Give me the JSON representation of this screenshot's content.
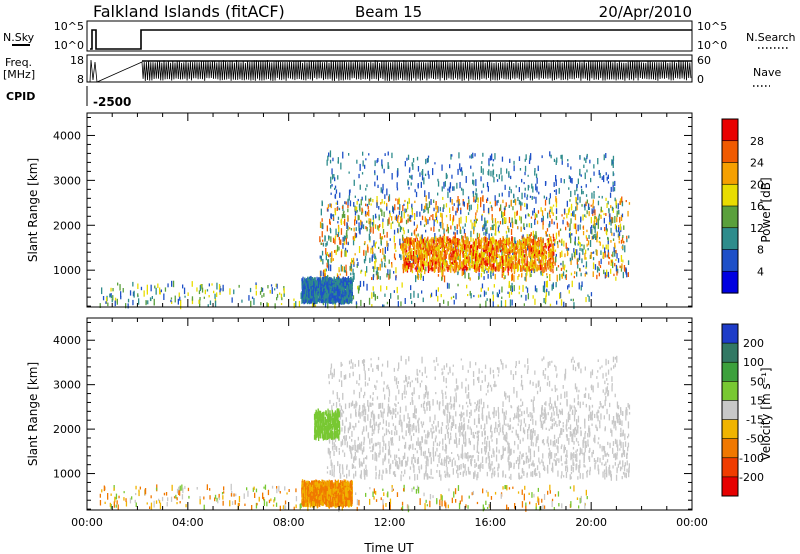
{
  "header": {
    "station": "Falkland Islands (fitACF)",
    "beam": "Beam 15",
    "date": "20/Apr/2010"
  },
  "top_panels": {
    "nsky_label": "N.Sky",
    "nsky_ticks": [
      "10^5",
      "10^0"
    ],
    "nsearch_label": "N.Search",
    "nsearch_ticks": [
      "10^5",
      "10^0"
    ],
    "freq_label": "Freq.",
    "freq_unit": "[MHz]",
    "freq_ticks": [
      "18",
      "8"
    ],
    "nave_label": "Nave",
    "nave_ticks": [
      "60",
      "0"
    ],
    "cpid_label": "CPID",
    "cpid_value": "-2500"
  },
  "chart_data": [
    {
      "type": "heatmap",
      "name": "power",
      "ylabel": "Slant Range [km]",
      "ylim": [
        180,
        4500
      ],
      "yticks": [
        1000,
        2000,
        3000,
        4000
      ],
      "ytick_labels": [
        "1000",
        "2000",
        "3000",
        "4000"
      ],
      "xlim_hours": [
        0,
        24
      ],
      "colorbar": {
        "label": "Power [dB]",
        "levels": [
          {
            "label": "28",
            "color": "#e80000"
          },
          {
            "label": "24",
            "color": "#f05a00"
          },
          {
            "label": "20",
            "color": "#f5a000"
          },
          {
            "label": "16",
            "color": "#e8dc00"
          },
          {
            "label": "12",
            "color": "#5aa03c"
          },
          {
            "label": "8",
            "color": "#2e8c8c"
          },
          {
            "label": "4",
            "color": "#1e50c8"
          }
        ],
        "bottom_color": "#0000e0"
      },
      "regions": [
        {
          "t0": 9.2,
          "t1": 21.5,
          "r0": 800,
          "r1": 2600,
          "value_range": [
            4,
            28
          ],
          "density": "dense"
        },
        {
          "t0": 12.5,
          "t1": 18.5,
          "r0": 1000,
          "r1": 1700,
          "value_range": [
            16,
            30
          ],
          "density": "dense"
        },
        {
          "t0": 9.5,
          "t1": 21.0,
          "r0": 2600,
          "r1": 3600,
          "value_range": [
            4,
            12
          ],
          "density": "sparse"
        },
        {
          "t0": 0.5,
          "t1": 20.0,
          "r0": 200,
          "r1": 700,
          "value_range": [
            4,
            20
          ],
          "density": "sparse"
        },
        {
          "t0": 8.5,
          "t1": 10.5,
          "r0": 300,
          "r1": 800,
          "value_range": [
            4,
            12
          ],
          "density": "dense"
        }
      ]
    },
    {
      "type": "heatmap",
      "name": "velocity",
      "ylabel": "Slant Range [km]",
      "ylim": [
        180,
        4500
      ],
      "yticks": [
        1000,
        2000,
        3000,
        4000
      ],
      "ytick_labels": [
        "1000",
        "2000",
        "3000",
        "4000"
      ],
      "xlabel": "Time UT",
      "xticks_hours": [
        0,
        4,
        8,
        12,
        16,
        20,
        24
      ],
      "xtick_labels": [
        "00:00",
        "04:00",
        "08:00",
        "12:00",
        "16:00",
        "20:00",
        "00:00"
      ],
      "colorbar": {
        "label": "Velocity [m s⁻¹]",
        "levels": [
          {
            "label": "200",
            "color": "#1e3cc8"
          },
          {
            "label": "100",
            "color": "#327864"
          },
          {
            "label": "50",
            "color": "#3ca03c"
          },
          {
            "label": "15",
            "color": "#78c832"
          },
          {
            "label": "-15",
            "color": "#c8c8c8"
          },
          {
            "label": "-50",
            "color": "#f0b400"
          },
          {
            "label": "-100",
            "color": "#f07800"
          },
          {
            "label": "-200",
            "color": "#f03c00"
          }
        ],
        "bottom_color": "#e60000"
      },
      "regions": [
        {
          "t0": 9.5,
          "t1": 21.5,
          "r0": 900,
          "r1": 2600,
          "value_range": [
            -15,
            15
          ],
          "density": "dense"
        },
        {
          "t0": 9.5,
          "t1": 21.0,
          "r0": 2600,
          "r1": 3600,
          "value_range": [
            -15,
            15
          ],
          "density": "sparse"
        },
        {
          "t0": 0.5,
          "t1": 20.0,
          "r0": 200,
          "r1": 700,
          "value_range": [
            -100,
            50
          ],
          "density": "sparse"
        },
        {
          "t0": 8.5,
          "t1": 10.5,
          "r0": 300,
          "r1": 800,
          "value_range": [
            -100,
            -15
          ],
          "density": "dense"
        },
        {
          "t0": 9.0,
          "t1": 10.0,
          "r0": 1800,
          "r1": 2400,
          "value_range": [
            15,
            50
          ],
          "density": "sparse"
        }
      ]
    }
  ],
  "colors": {
    "axis": "#000000",
    "trace": "#000000"
  }
}
